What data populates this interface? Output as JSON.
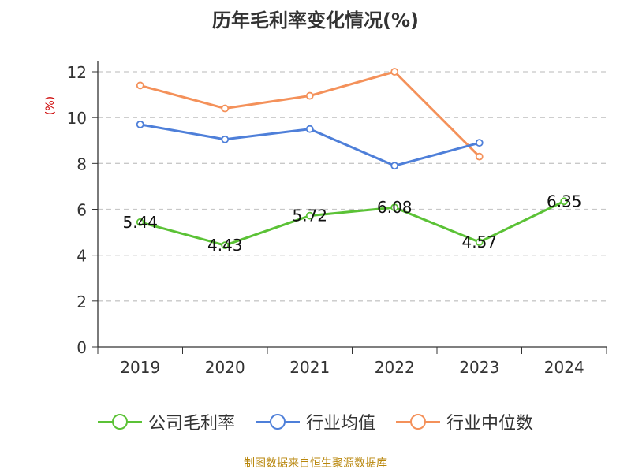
{
  "chart_data": {
    "type": "line",
    "title": "历年毛利率变化情况(%)",
    "ylabel": "(%)",
    "xlabel": "",
    "categories": [
      "2019",
      "2020",
      "2021",
      "2022",
      "2023",
      "2024"
    ],
    "ylim": [
      0,
      12
    ],
    "yticks": [
      0,
      2,
      4,
      6,
      8,
      10,
      12
    ],
    "grid": true,
    "legend_position": "bottom",
    "series": [
      {
        "name": "公司毛利率",
        "color": "#5bc236",
        "values": [
          5.44,
          4.43,
          5.72,
          6.08,
          4.57,
          6.35
        ],
        "show_labels": true
      },
      {
        "name": "行业均值",
        "color": "#4e7fd9",
        "values": [
          9.7,
          9.05,
          9.5,
          7.9,
          8.9,
          null
        ],
        "show_labels": false
      },
      {
        "name": "行业中位数",
        "color": "#f4915a",
        "values": [
          11.4,
          10.4,
          10.95,
          12.0,
          8.3,
          null
        ],
        "show_labels": false
      }
    ],
    "source": "制图数据来自恒生聚源数据库"
  }
}
